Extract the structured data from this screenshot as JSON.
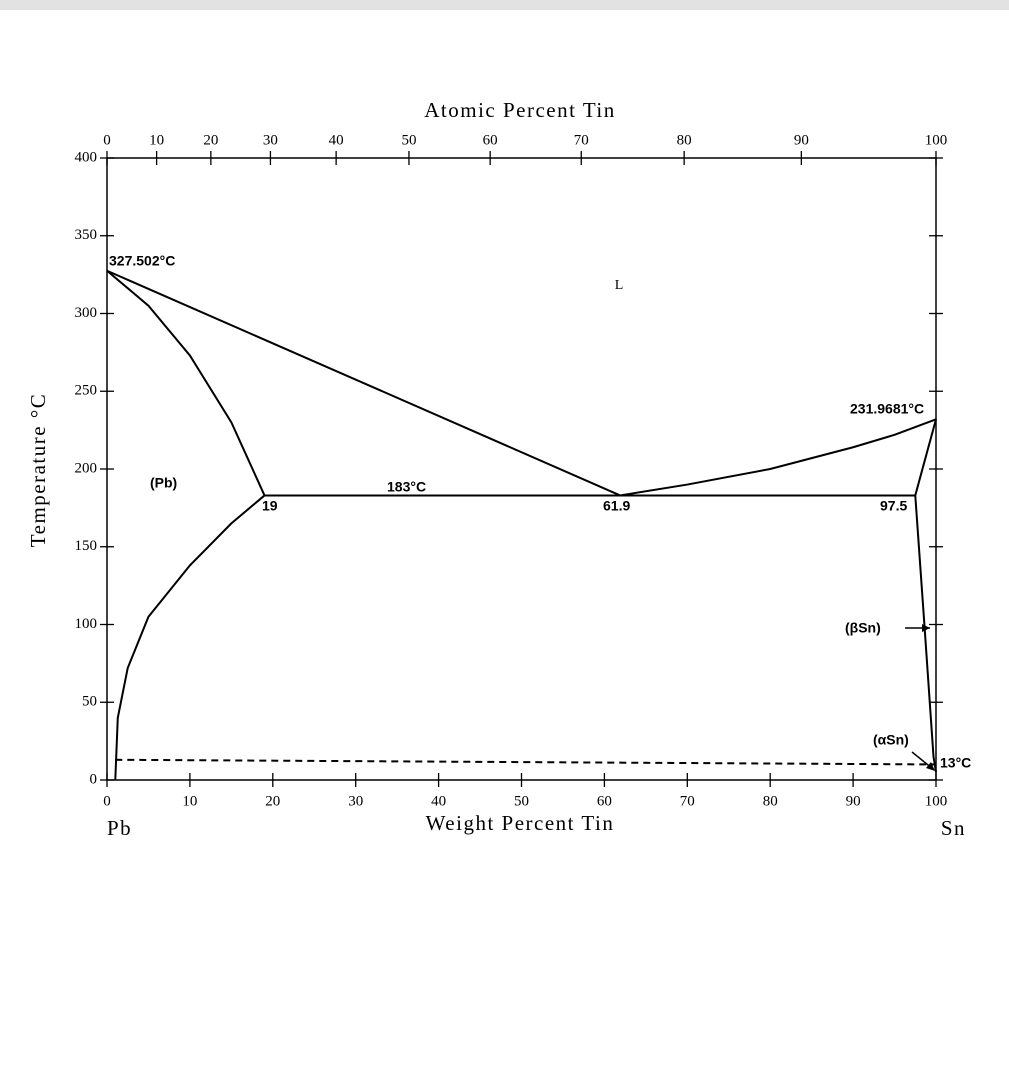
{
  "chart_data": {
    "type": "line",
    "xlabel": "Weight Percent Tin",
    "x2label": "Atomic Percent Tin",
    "ylabel": "Temperature °C",
    "x_left_label": "Pb",
    "x_right_label": "Sn",
    "xlim": [
      0,
      100
    ],
    "ylim": [
      0,
      400
    ],
    "xticks": [
      0,
      10,
      20,
      30,
      40,
      50,
      60,
      70,
      80,
      90,
      100
    ],
    "x2ticks": [
      0,
      10,
      20,
      30,
      40,
      50,
      60,
      70,
      80,
      90,
      100
    ],
    "yticks": [
      0,
      50,
      100,
      150,
      200,
      250,
      300,
      350,
      400
    ],
    "series": [
      {
        "color": "#000000",
        "linestyle": "solid",
        "x": [
          0,
          61.9
        ],
        "values": [
          327.502,
          183
        ]
      },
      {
        "color": "#000000",
        "linestyle": "solid",
        "x": [
          61.9,
          70,
          80,
          85,
          90,
          95,
          100
        ],
        "values": [
          183,
          190,
          200,
          207,
          214,
          222,
          231.9681
        ]
      },
      {
        "color": "#000000",
        "linestyle": "solid",
        "x": [
          0,
          5,
          10,
          15,
          19
        ],
        "values": [
          327.502,
          305,
          273,
          230,
          183
        ]
      },
      {
        "color": "#000000",
        "linestyle": "solid",
        "x": [
          19,
          15,
          10,
          5,
          2.5,
          1.3,
          1
        ],
        "values": [
          183,
          165,
          138,
          105,
          72,
          40,
          0
        ]
      },
      {
        "color": "#000000",
        "linestyle": "solid",
        "x": [
          19,
          97.5
        ],
        "values": [
          183,
          183
        ]
      },
      {
        "color": "#000000",
        "linestyle": "solid",
        "x": [
          97.5,
          100
        ],
        "values": [
          183,
          231.9681
        ]
      },
      {
        "color": "#000000",
        "linestyle": "solid",
        "x": [
          97.5,
          98.6,
          99.7,
          100
        ],
        "values": [
          183,
          100,
          15,
          5
        ]
      },
      {
        "color": "#000000",
        "linestyle": "dashed",
        "x": [
          1,
          100
        ],
        "values": [
          13,
          10
        ]
      }
    ],
    "annotations": [
      "327.502°C",
      "231.9681°C",
      "183°C",
      "19",
      "61.9",
      "97.5",
      "13°C",
      "L",
      "(Pb)",
      "(βSn)",
      "(αSn)"
    ]
  }
}
